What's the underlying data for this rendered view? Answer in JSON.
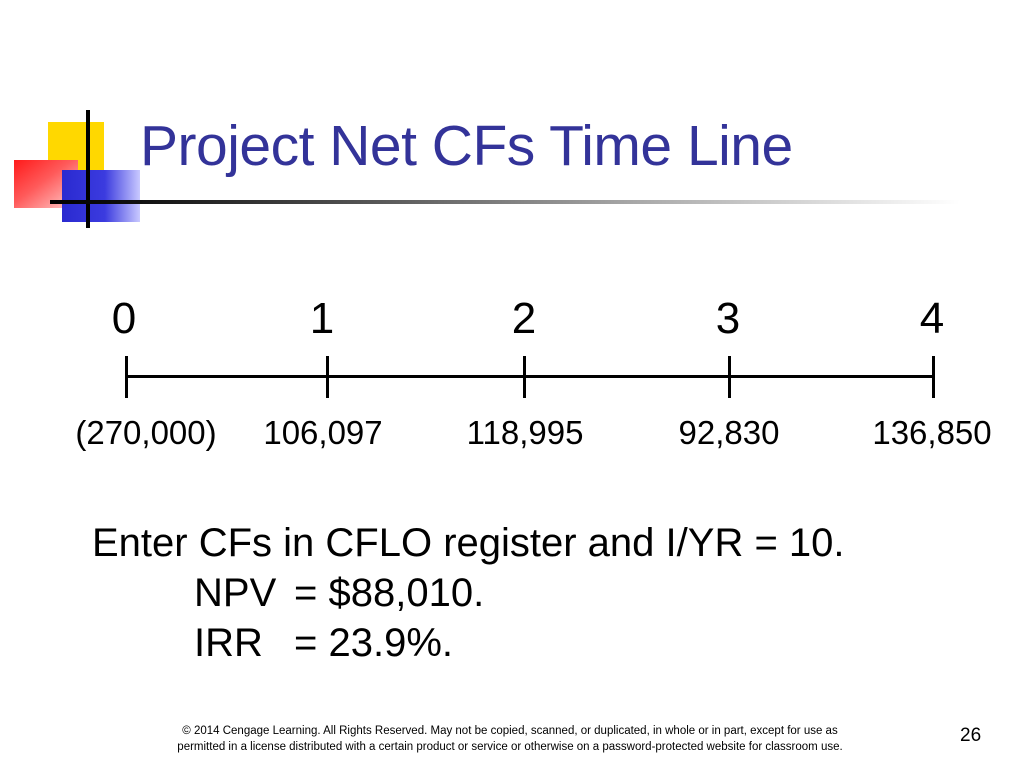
{
  "slide": {
    "title": "Project Net CFs Time Line",
    "slide_number": "26",
    "colors": {
      "title": "#333399",
      "deco_yellow": "#ffd800",
      "deco_red": "#ff1a1a",
      "deco_blue": "#2a2ad0"
    }
  },
  "timeline": {
    "periods": [
      "0",
      "1",
      "2",
      "3",
      "4"
    ],
    "cash_flows": [
      "(270,000)",
      "106,097",
      "118,995",
      "92,830",
      "136,850"
    ]
  },
  "body": {
    "line1": "Enter CFs in CFLO register and I/YR = 10.",
    "npv_label": "NPV",
    "npv_value": "= $88,010.",
    "irr_label": "IRR",
    "irr_value": "= 23.9%."
  },
  "footer": {
    "line1": "© 2014 Cengage Learning. All Rights Reserved. May not be copied, scanned, or duplicated, in whole or in part, except for use as",
    "line2": "permitted in a license distributed with a certain product or service or otherwise on a password-protected website for classroom use."
  }
}
